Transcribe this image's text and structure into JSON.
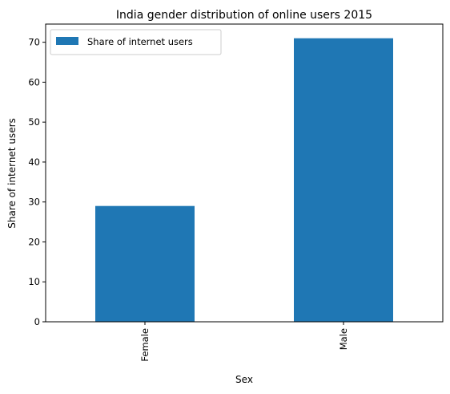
{
  "chart_data": {
    "type": "bar",
    "title": "India gender distribution of online users 2015",
    "xlabel": "Sex",
    "ylabel": "Share of internet users",
    "categories": [
      "Female",
      "Male"
    ],
    "series": [
      {
        "name": "Share of internet users",
        "values": [
          29,
          71
        ]
      }
    ],
    "ylim": [
      0,
      74.55
    ],
    "yticks": [
      0,
      10,
      20,
      30,
      40,
      50,
      60,
      70
    ],
    "grid": false,
    "legend_position": "top-left",
    "colors": {
      "bar": "#1f77b4"
    }
  }
}
